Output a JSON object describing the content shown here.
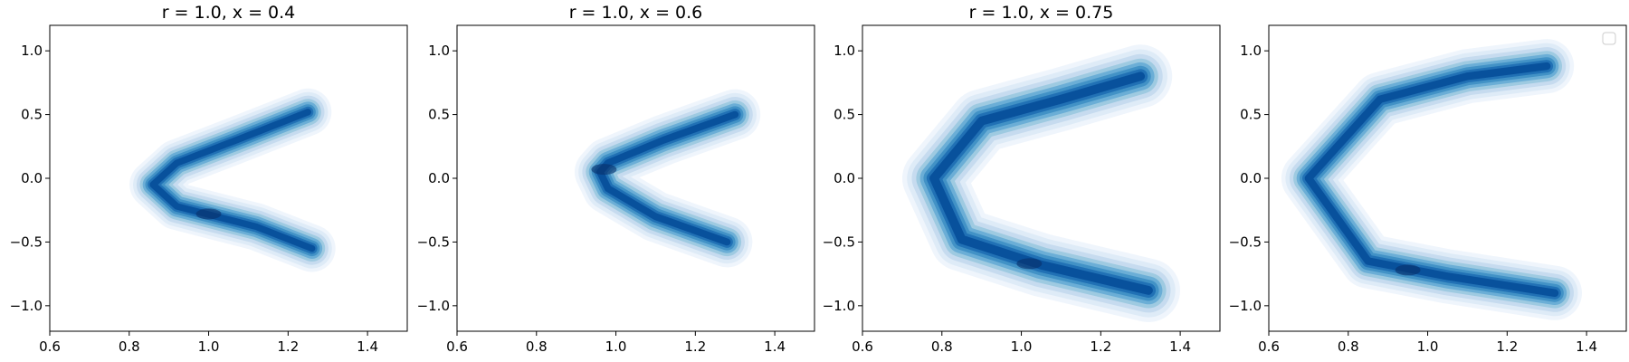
{
  "chart_data": [
    {
      "type": "contour",
      "title": "r = 1.0, x = 0.4",
      "xlim": [
        0.6,
        1.5
      ],
      "ylim": [
        -1.2,
        1.2
      ],
      "xticks": [
        "0.6",
        "0.8",
        "1.0",
        "1.2",
        "1.4"
      ],
      "yticks": [
        "−1.0",
        "−0.5",
        "0.0",
        "0.5",
        "1.0"
      ],
      "density_ridge": {
        "shape": "single chevron opening to the right",
        "points": [
          {
            "x": 1.25,
            "y": 0.52
          },
          {
            "x": 1.07,
            "y": 0.3
          },
          {
            "x": 0.92,
            "y": 0.12
          },
          {
            "x": 0.86,
            "y": -0.05
          },
          {
            "x": 0.92,
            "y": -0.22
          },
          {
            "x": 1.02,
            "y": -0.3
          },
          {
            "x": 1.12,
            "y": -0.38
          },
          {
            "x": 1.26,
            "y": -0.55
          }
        ],
        "peak": {
          "x": 1.0,
          "y": -0.28
        }
      }
    },
    {
      "type": "contour",
      "title": "r = 1.0, x = 0.6",
      "xlim": [
        0.6,
        1.5
      ],
      "ylim": [
        -1.2,
        1.2
      ],
      "xticks": [
        "0.6",
        "0.8",
        "1.0",
        "1.2",
        "1.4"
      ],
      "yticks": [
        "−1.0",
        "−0.5",
        "0.0",
        "0.5",
        "1.0"
      ],
      "density_ridge": {
        "shape": "single blob with faint arms to the right",
        "points": [
          {
            "x": 1.3,
            "y": 0.5
          },
          {
            "x": 1.12,
            "y": 0.3
          },
          {
            "x": 0.98,
            "y": 0.12
          },
          {
            "x": 0.96,
            "y": 0.05
          },
          {
            "x": 0.98,
            "y": -0.08
          },
          {
            "x": 1.1,
            "y": -0.3
          },
          {
            "x": 1.28,
            "y": -0.5
          }
        ],
        "peak": {
          "x": 0.97,
          "y": 0.07
        }
      }
    },
    {
      "type": "contour",
      "title": "r = 1.0, x = 0.75",
      "xlim": [
        0.6,
        1.5
      ],
      "ylim": [
        -1.2,
        1.2
      ],
      "xticks": [
        "0.6",
        "0.8",
        "1.0",
        "1.2",
        "1.4"
      ],
      "yticks": [
        "−1.0",
        "−0.5",
        "0.0",
        "0.5",
        "1.0"
      ],
      "density_ridge": {
        "shape": "open C with two lobes",
        "points": [
          {
            "x": 1.3,
            "y": 0.8
          },
          {
            "x": 1.1,
            "y": 0.62
          },
          {
            "x": 0.9,
            "y": 0.45
          },
          {
            "x": 0.78,
            "y": 0.0
          },
          {
            "x": 0.85,
            "y": -0.48
          },
          {
            "x": 1.05,
            "y": -0.68
          },
          {
            "x": 1.32,
            "y": -0.88
          }
        ],
        "peak": {
          "x": 1.02,
          "y": -0.67
        }
      }
    },
    {
      "type": "contour",
      "title": "",
      "legend": {
        "placement": "top-right",
        "entries": []
      },
      "xlim": [
        0.6,
        1.5
      ],
      "ylim": [
        -1.2,
        1.2
      ],
      "xticks": [
        "0.6",
        "0.8",
        "1.0",
        "1.2",
        "1.4"
      ],
      "yticks": [
        "−1.0",
        "−0.5",
        "0.0",
        "0.5",
        "1.0"
      ],
      "density_ridge": {
        "shape": "open C with two tight lobes",
        "points": [
          {
            "x": 1.3,
            "y": 0.88
          },
          {
            "x": 1.1,
            "y": 0.8
          },
          {
            "x": 0.88,
            "y": 0.62
          },
          {
            "x": 0.7,
            "y": 0.0
          },
          {
            "x": 0.85,
            "y": -0.65
          },
          {
            "x": 1.05,
            "y": -0.77
          },
          {
            "x": 1.32,
            "y": -0.9
          }
        ],
        "peak": {
          "x": 0.95,
          "y": -0.72
        }
      }
    }
  ]
}
